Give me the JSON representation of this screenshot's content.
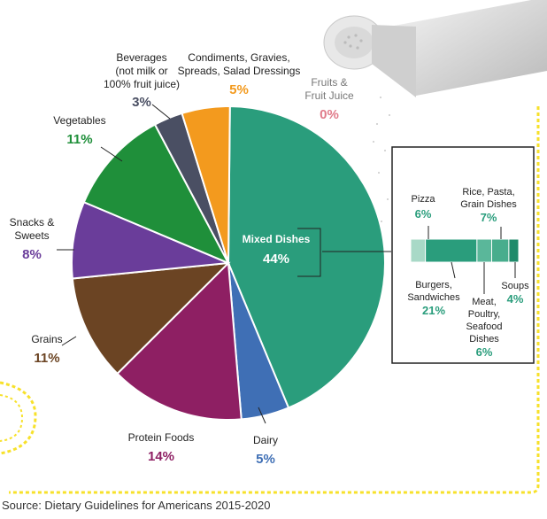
{
  "chart_data": {
    "type": "pie",
    "title": "",
    "slices": [
      {
        "label": "Mixed Dishes",
        "value": 44,
        "color": "#2a9d7c"
      },
      {
        "label": "Dairy",
        "value": 5,
        "color": "#3f6fb5"
      },
      {
        "label": "Protein Foods",
        "value": 14,
        "color": "#8e1f63"
      },
      {
        "label": "Grains",
        "value": 11,
        "color": "#6b4423"
      },
      {
        "label": "Snacks & Sweets",
        "value": 8,
        "color": "#6a3d9a"
      },
      {
        "label": "Vegetables",
        "value": 11,
        "color": "#1f8f3a"
      },
      {
        "label": "Beverages (not milk or 100% fruit juice)",
        "value": 3,
        "color": "#4a4f63"
      },
      {
        "label": "Condiments, Gravies, Spreads, Salad Dressings",
        "value": 5,
        "color": "#f39a1e"
      },
      {
        "label": "Fruits & Fruit Juice",
        "value": 0,
        "color": "#e07b8a"
      }
    ],
    "inset": {
      "parent": "Mixed Dishes",
      "segments": [
        {
          "label": "Pizza",
          "value": 6,
          "color": "#a8d9c7"
        },
        {
          "label": "Burgers, Sandwiches",
          "value": 21,
          "color": "#2a9d7c"
        },
        {
          "label": "Meat, Poultry, Seafood Dishes",
          "value": 6,
          "color": "#5ab79a"
        },
        {
          "label": "Rice, Pasta, Grain Dishes",
          "value": 7,
          "color": "#48ad8d"
        },
        {
          "label": "Soups",
          "value": 4,
          "color": "#1f8a6a"
        }
      ]
    }
  },
  "labels": {
    "mixed": {
      "name": "Mixed Dishes",
      "pct": "44%"
    },
    "dairy": {
      "name": "Dairy",
      "pct": "5%"
    },
    "protein": {
      "name": "Protein Foods",
      "pct": "14%"
    },
    "grains": {
      "name": "Grains",
      "pct": "11%"
    },
    "snacks": {
      "line1": "Snacks &",
      "line2": "Sweets",
      "pct": "8%"
    },
    "vegetables": {
      "name": "Vegetables",
      "pct": "11%"
    },
    "beverages": {
      "line1": "Beverages",
      "line2": "(not milk or",
      "line3": "100% fruit juice)",
      "pct": "3%"
    },
    "condiments": {
      "line1": "Condiments, Gravies,",
      "line2": "Spreads, Salad Dressings",
      "pct": "5%"
    },
    "fruits": {
      "line1": "Fruits &",
      "line2": "Fruit Juice",
      "pct": "0%"
    }
  },
  "inset_labels": {
    "pizza": {
      "name": "Pizza",
      "pct": "6%"
    },
    "rice": {
      "line1": "Rice, Pasta,",
      "line2": "Grain Dishes",
      "pct": "7%"
    },
    "burgers": {
      "line1": "Burgers,",
      "line2": "Sandwiches",
      "pct": "21%"
    },
    "meat": {
      "line1": "Meat,",
      "line2": "Poultry,",
      "line3": "Seafood",
      "line4": "Dishes",
      "pct": "6%"
    },
    "soups": {
      "name": "Soups",
      "pct": "4%"
    }
  },
  "source": "Source: Dietary Guidelines for Americans 2015-2020",
  "colors": {
    "border_yellow": "#f7e12b",
    "text_dark": "#222222"
  }
}
